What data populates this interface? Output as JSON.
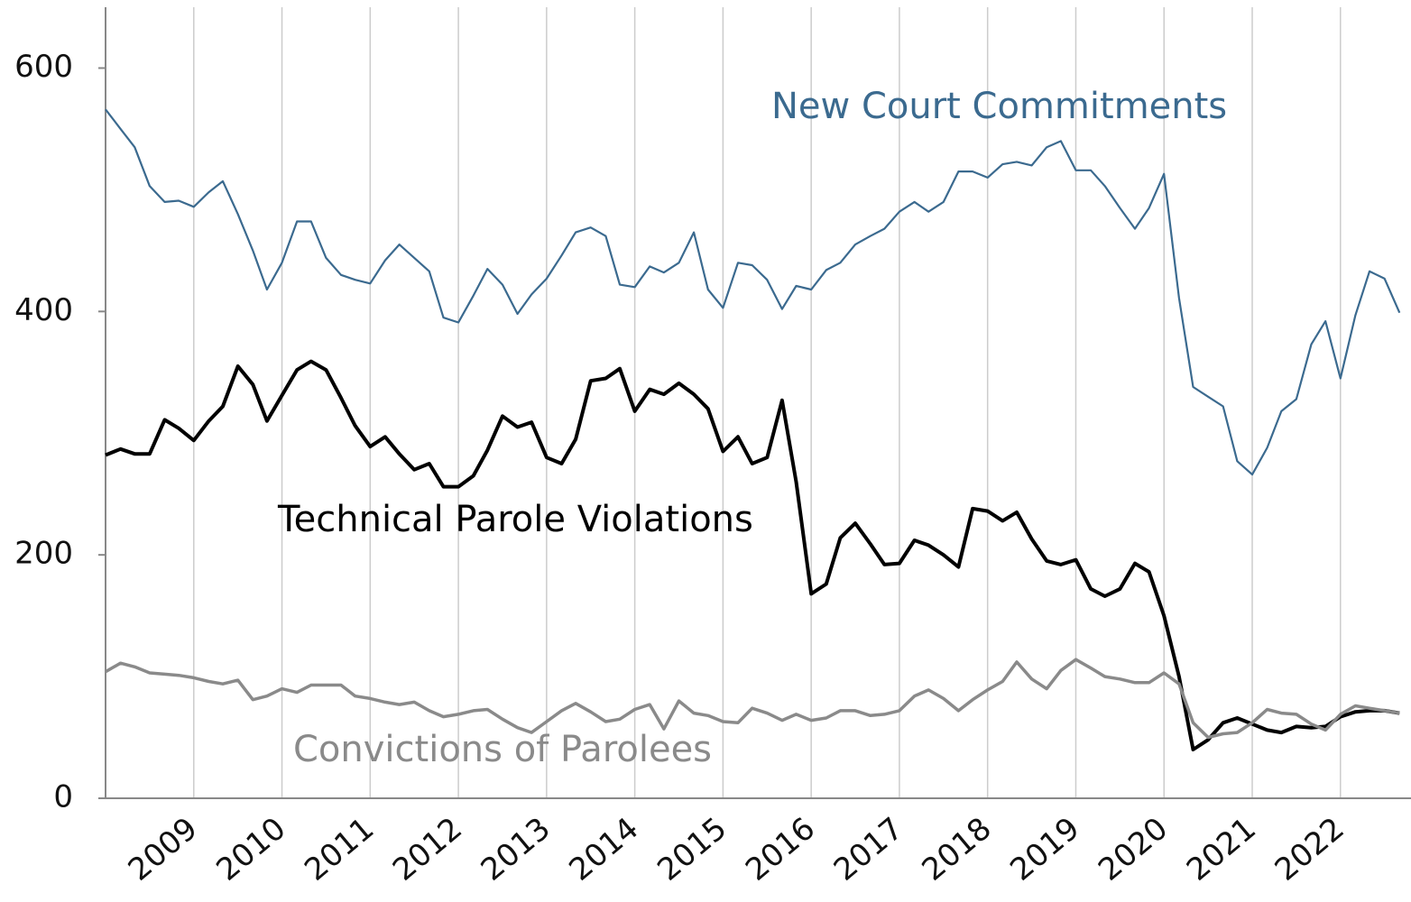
{
  "chart_data": {
    "type": "line",
    "x": [
      2008,
      2008.17,
      2008.33,
      2008.5,
      2008.67,
      2008.83,
      2009,
      2009.17,
      2009.33,
      2009.5,
      2009.67,
      2009.83,
      2010,
      2010.17,
      2010.33,
      2010.5,
      2010.67,
      2010.83,
      2011,
      2011.17,
      2011.33,
      2011.5,
      2011.67,
      2011.83,
      2012,
      2012.17,
      2012.33,
      2012.5,
      2012.67,
      2012.83,
      2013,
      2013.17,
      2013.33,
      2013.5,
      2013.67,
      2013.83,
      2014,
      2014.17,
      2014.33,
      2014.5,
      2014.67,
      2014.83,
      2015,
      2015.17,
      2015.33,
      2015.5,
      2015.67,
      2015.83,
      2016,
      2016.17,
      2016.33,
      2016.5,
      2016.67,
      2016.83,
      2017,
      2017.17,
      2017.33,
      2017.5,
      2017.67,
      2017.83,
      2018,
      2018.17,
      2018.33,
      2018.5,
      2018.67,
      2018.83,
      2019,
      2019.17,
      2019.33,
      2019.5,
      2019.67,
      2019.83,
      2020,
      2020.17,
      2020.33,
      2020.5,
      2020.67,
      2020.83,
      2021,
      2021.17,
      2021.33,
      2021.5,
      2021.67,
      2021.83,
      2022,
      2022.17,
      2022.33,
      2022.5,
      2022.67
    ],
    "series": [
      {
        "name": "New Court Commitments",
        "color": "#3b6a8f",
        "values": [
          566,
          550,
          535,
          503,
          490,
          491,
          486,
          498,
          507,
          480,
          450,
          418,
          440,
          474,
          474,
          444,
          430,
          426,
          423,
          442,
          455,
          444,
          433,
          395,
          391,
          413,
          435,
          422,
          398,
          414,
          427,
          446,
          465,
          469,
          462,
          422,
          420,
          437,
          432,
          440,
          465,
          418,
          403,
          440,
          438,
          426,
          402,
          421,
          418,
          434,
          440,
          455,
          462,
          468,
          482,
          490,
          482,
          490,
          515,
          515,
          510,
          521,
          523,
          520,
          535,
          540,
          516,
          516,
          503,
          485,
          468,
          485,
          513,
          411,
          338,
          330,
          322,
          277,
          266,
          288,
          318,
          328,
          373,
          392,
          345,
          397,
          433,
          427,
          399
        ]
      },
      {
        "name": "Technical Parole Violations",
        "color": "#000000",
        "values": [
          282,
          287,
          283,
          283,
          311,
          304,
          294,
          310,
          322,
          355,
          340,
          310,
          331,
          352,
          359,
          352,
          329,
          306,
          289,
          297,
          283,
          270,
          275,
          256,
          256,
          265,
          286,
          314,
          305,
          309,
          280,
          275,
          295,
          343,
          345,
          353,
          318,
          336,
          332,
          341,
          332,
          320,
          285,
          297,
          275,
          280,
          327,
          260,
          168,
          176,
          214,
          226,
          209,
          192,
          193,
          212,
          208,
          200,
          190,
          238,
          236,
          228,
          235,
          213,
          195,
          192,
          196,
          172,
          166,
          172,
          193,
          186,
          150,
          100,
          40,
          48,
          62,
          66,
          61,
          56,
          54,
          59,
          58,
          59,
          67,
          71,
          72,
          72,
          70
        ]
      },
      {
        "name": "Convictions of Parolees",
        "color": "#8a8a8a",
        "values": [
          104,
          111,
          108,
          103,
          102,
          101,
          99,
          96,
          94,
          97,
          81,
          84,
          90,
          87,
          93,
          93,
          93,
          84,
          82,
          79,
          77,
          79,
          72,
          67,
          69,
          72,
          73,
          65,
          58,
          54,
          63,
          72,
          78,
          71,
          63,
          65,
          73,
          77,
          57,
          80,
          70,
          68,
          63,
          62,
          74,
          70,
          64,
          69,
          64,
          66,
          72,
          72,
          68,
          69,
          72,
          84,
          89,
          82,
          72,
          81,
          89,
          96,
          112,
          98,
          90,
          105,
          114,
          107,
          100,
          98,
          95,
          95,
          103,
          94,
          62,
          50,
          53,
          54,
          62,
          73,
          70,
          69,
          61,
          56,
          69,
          76,
          74,
          72,
          70
        ]
      }
    ],
    "xlim": [
      2008,
      2022.8
    ],
    "xticks": [
      2009,
      2010,
      2011,
      2012,
      2013,
      2014,
      2015,
      2016,
      2017,
      2018,
      2019,
      2020,
      2021,
      2022
    ],
    "ylim": [
      0,
      650
    ],
    "yticks": [
      0,
      200,
      400,
      600
    ],
    "grid": true
  }
}
